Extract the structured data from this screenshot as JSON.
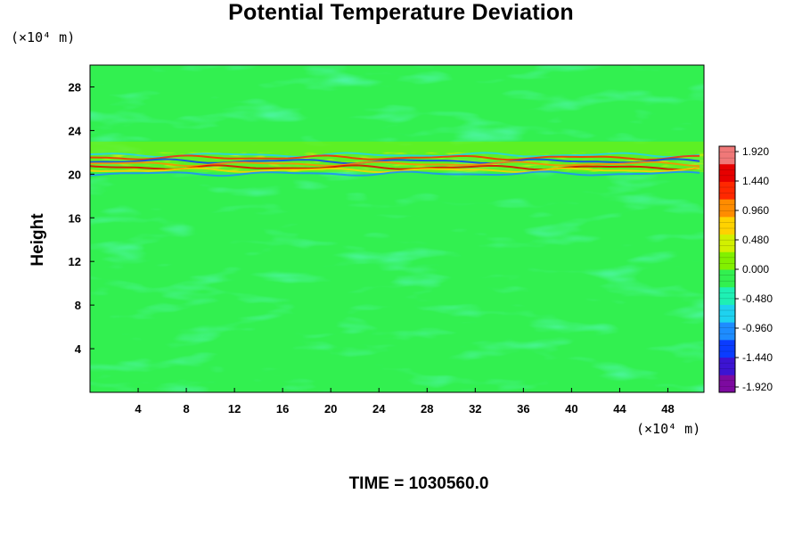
{
  "chart_data": {
    "type": "heatmap",
    "title": "Potential Temperature Deviation",
    "ylabel": "Height",
    "xlabel": "",
    "x_unit": "(×10⁴ m)",
    "y_unit": "(×10⁴ m)",
    "xlim": [
      0,
      51
    ],
    "ylim": [
      0,
      30
    ],
    "x_ticks": [
      4,
      8,
      12,
      16,
      20,
      24,
      28,
      32,
      36,
      40,
      44,
      48
    ],
    "y_ticks": [
      4,
      8,
      12,
      16,
      20,
      24,
      28
    ],
    "colorbar": {
      "min": -1.92,
      "max": 1.92,
      "labels": [
        "1.920",
        "1.440",
        "0.960",
        "0.480",
        "0.000",
        "-0.480",
        "-0.960",
        "-1.440",
        "-1.920"
      ],
      "colors": [
        "#7d0aa0",
        "#3c14d2",
        "#0a3cff",
        "#1e8cff",
        "#1ed2f0",
        "#1ef0b4",
        "#32f050",
        "#82f000",
        "#d2f000",
        "#ffd200",
        "#ff8c00",
        "#ff2800",
        "#e60000",
        "#f07878"
      ]
    },
    "features": [
      {
        "description_value": "strong +/- deviation layer",
        "y_center": 20.7,
        "x_range": [
          0,
          51
        ]
      }
    ]
  },
  "time_label": "TIME = 1030560.0"
}
